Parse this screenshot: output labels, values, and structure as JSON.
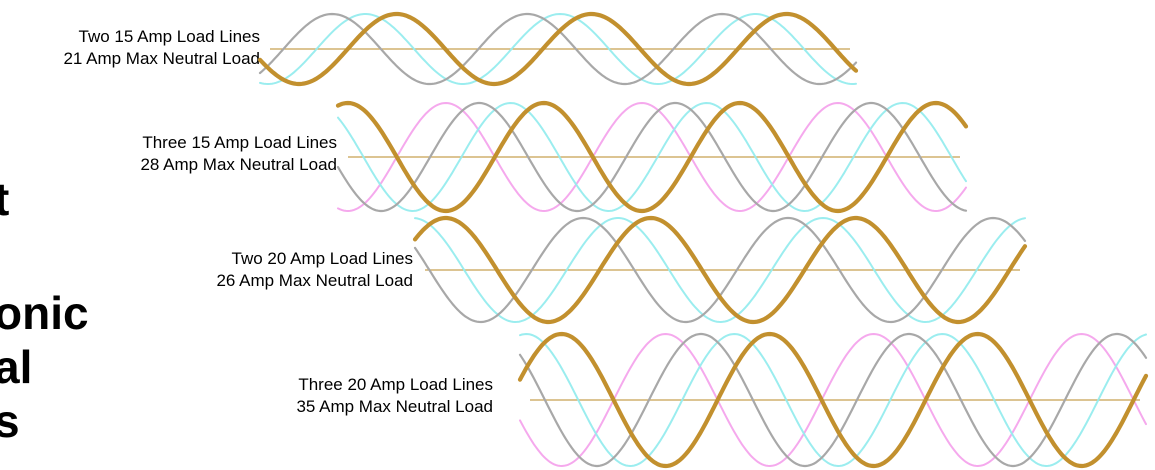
{
  "headline": {
    "line1": "t",
    "line2": "onic",
    "line3": "al",
    "line4": "s"
  },
  "colors": {
    "phase_a": "#c2902e",
    "phase_b": "#a8a8a8",
    "phase_c": "#96ecee",
    "phase_d": "#f4a4ec",
    "neutral": "#c8a050"
  },
  "diagrams": [
    {
      "id": "two-15",
      "label_line1": "Two 15 Amp Load Lines",
      "label_line2": "21 Amp Max Neutral Load",
      "phase_count": 2
    },
    {
      "id": "three-15",
      "label_line1": "Three 15 Amp Load Lines",
      "label_line2": "28 Amp Max Neutral Load",
      "phase_count": 3
    },
    {
      "id": "two-20",
      "label_line1": "Two 20 Amp Load Lines",
      "label_line2": "26 Amp Max Neutral Load",
      "phase_count": 2
    },
    {
      "id": "three-20",
      "label_line1": "Three 20 Amp Load Lines",
      "label_line2": "35 Amp Max Neutral Load",
      "phase_count": 3
    }
  ]
}
